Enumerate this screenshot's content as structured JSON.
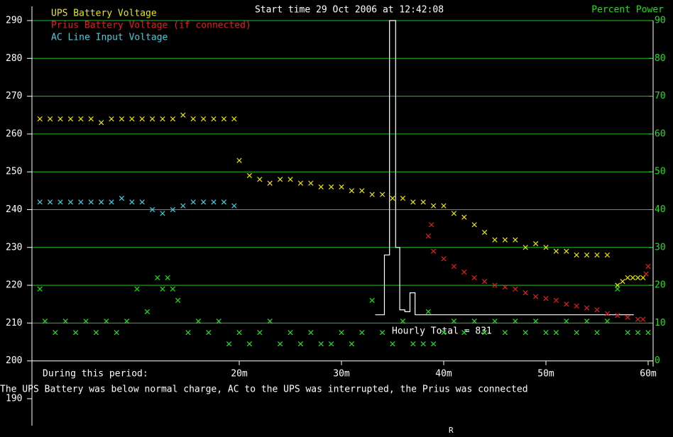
{
  "chart_data": {
    "type": "scatter",
    "title": "Start time 29 Oct 2006 at 12:42:08",
    "y2_label": "Percent Power",
    "subtitle": "During this period:",
    "message": "The UPS Battery was below normal charge, AC to the UPS was interrupted, the Prius was connected",
    "footer": "R",
    "grid": true,
    "xlim": [
      0,
      60
    ],
    "xticks": [
      {
        "value": 20,
        "label": "20m"
      },
      {
        "value": 30,
        "label": "30m"
      },
      {
        "value": 40,
        "label": "40m"
      },
      {
        "value": 50,
        "label": "50m"
      },
      {
        "value": 60,
        "label": "60m"
      }
    ],
    "ylim": [
      190,
      290
    ],
    "yticks": [
      190,
      200,
      210,
      220,
      230,
      240,
      250,
      260,
      270,
      280,
      290
    ],
    "y2lim": [
      -10,
      90
    ],
    "y2ticks": [
      0,
      10,
      20,
      30,
      40,
      50,
      60,
      70,
      80,
      90
    ],
    "series": [
      {
        "name": "UPS Battery Voltage",
        "color": "#e8e800",
        "x": [
          0.5,
          1.5,
          2.5,
          3.5,
          4.5,
          5.5,
          6.5,
          7.5,
          8.5,
          9.5,
          10.5,
          11.5,
          12.5,
          13.5,
          14.5,
          15.5,
          16.5,
          17.5,
          18.5,
          19.5,
          20,
          21,
          22,
          23,
          24,
          25,
          26,
          27,
          28,
          29,
          30,
          31,
          32,
          33,
          34,
          35,
          36,
          37,
          38,
          39,
          40,
          41,
          42,
          43,
          44,
          45,
          46,
          47,
          48,
          49,
          50,
          51,
          52,
          53,
          54,
          55,
          56,
          57,
          57.5,
          58,
          58.5,
          59,
          59.5
        ],
        "values": [
          264,
          264,
          264,
          264,
          264,
          264,
          263,
          264,
          264,
          264,
          264,
          264,
          264,
          264,
          265,
          264,
          264,
          264,
          264,
          264,
          253,
          249,
          248,
          247,
          248,
          248,
          247,
          247,
          246,
          246,
          246,
          245,
          245,
          244,
          244,
          243,
          243,
          242,
          242,
          241,
          241,
          239,
          238,
          236,
          234,
          232,
          232,
          232,
          230,
          231,
          230,
          229,
          229,
          228,
          228,
          228,
          228,
          220,
          221,
          222,
          222,
          222,
          222
        ]
      },
      {
        "name": "Prius Battery Voltage (if connected)",
        "color": "#e02020",
        "x": [
          38.5,
          38.8,
          39,
          40,
          41,
          42,
          43,
          44,
          45,
          46,
          47,
          48,
          49,
          50,
          51,
          52,
          53,
          54,
          55,
          56,
          57,
          58,
          59,
          59.5,
          59.8,
          60
        ],
        "values": [
          233,
          236,
          229,
          227,
          225,
          223.5,
          222,
          221,
          220,
          219.5,
          219,
          218,
          217,
          216.5,
          216,
          215,
          214.5,
          214,
          213.5,
          212.5,
          212,
          211.5,
          211,
          211,
          223,
          225
        ]
      },
      {
        "name": "AC Line Input Voltage",
        "color": "#40d0e0",
        "x": [
          0.5,
          1.5,
          2.5,
          3.5,
          4.5,
          5.5,
          6.5,
          7.5,
          8.5,
          9.5,
          10.5,
          11.5,
          12.5,
          13.5,
          14.5,
          15.5,
          16.5,
          17.5,
          18.5,
          19.5
        ],
        "values": [
          242,
          242,
          242,
          242,
          242,
          242,
          242,
          242,
          243,
          242,
          242,
          240,
          239,
          240,
          241,
          242,
          242,
          242,
          242,
          241
        ]
      },
      {
        "axis": "y2",
        "color": "#20e020",
        "x": [
          0.5,
          1,
          2,
          3,
          4,
          5,
          6,
          7,
          8,
          9,
          10,
          11,
          12,
          12.5,
          13,
          13.5,
          14,
          15,
          16,
          17,
          18,
          19,
          20,
          21,
          22,
          23,
          24,
          25,
          26,
          27,
          28,
          29,
          30,
          31,
          32,
          33,
          34,
          35,
          36,
          37,
          38,
          38.5,
          39,
          40,
          41,
          42,
          43,
          44,
          45,
          46,
          47,
          48,
          49,
          50,
          51,
          52,
          53,
          54,
          55,
          56,
          57,
          58,
          59,
          60
        ],
        "values": [
          19,
          10.5,
          7.5,
          10.5,
          7.5,
          10.5,
          7.5,
          10.5,
          7.5,
          10.5,
          19,
          13,
          22,
          19,
          22,
          19,
          16,
          7.5,
          10.5,
          7.5,
          10.5,
          4.5,
          7.5,
          4.5,
          7.5,
          10.5,
          4.5,
          7.5,
          4.5,
          7.5,
          4.5,
          4.5,
          7.5,
          4.5,
          7.5,
          16,
          7.5,
          4.5,
          10.5,
          4.5,
          4.5,
          13,
          4.5,
          7.5,
          10.5,
          7.5,
          10.5,
          7.5,
          10.5,
          7.5,
          10.5,
          7.5,
          10.5,
          7.5,
          7.5,
          10.5,
          7.5,
          10.5,
          7.5,
          10.5,
          19,
          7.5,
          7.5,
          7.5
        ]
      }
    ],
    "hourly": {
      "color": "#ffffff",
      "annotation": "Hourly Total = 831",
      "x": [
        33.3,
        34.2,
        34.2,
        34.7,
        34.7,
        35.3,
        35.3,
        35.7,
        35.7,
        36.2,
        36.2,
        36.7,
        36.7,
        37.2,
        37.2,
        58.6
      ],
      "values": [
        12.2,
        12.2,
        28,
        28,
        90,
        90,
        30,
        30,
        13.5,
        13.5,
        13,
        13,
        18,
        18,
        12.2,
        12.2
      ]
    }
  }
}
